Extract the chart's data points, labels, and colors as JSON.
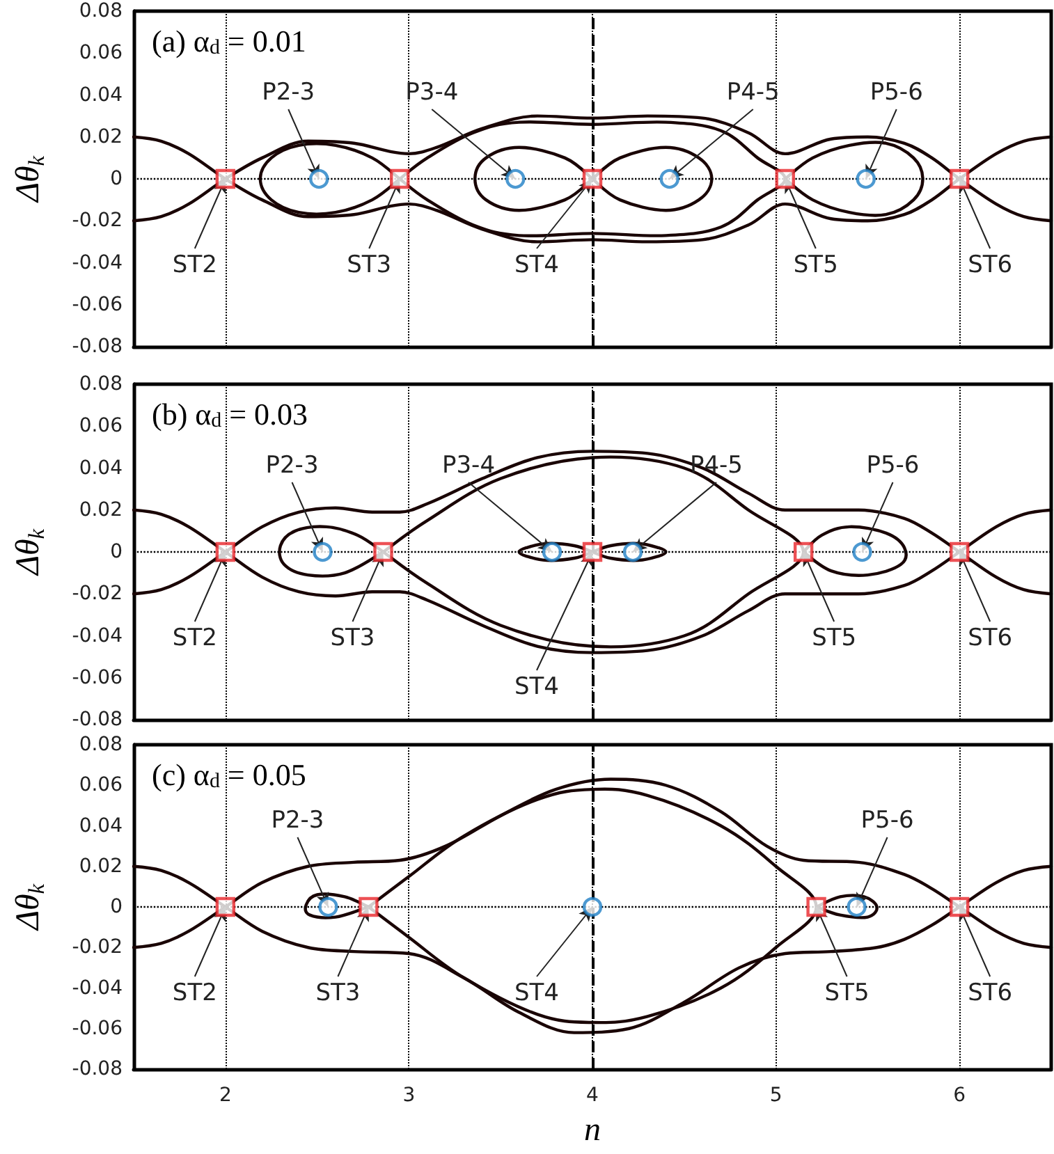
{
  "chart_data": [
    {
      "type": "line",
      "title": "(a) α$_{d}$ = 0.01",
      "ylabel": "Δθ$_{k}$",
      "xlim": [
        1.5,
        6.5
      ],
      "xticks": [
        2,
        3,
        4,
        5,
        6
      ],
      "ylim": [
        -0.08,
        0.08
      ],
      "yticks": [
        -0.08,
        -0.06,
        -0.04,
        -0.02,
        0,
        0.02,
        0.04,
        0.06,
        0.08
      ],
      "grid": "x",
      "tick_labels": "y",
      "ref_lines": [
        {
          "axis": "x",
          "value": 4,
          "line_style": "dashed",
          "color": "#000000"
        },
        {
          "axis": "y",
          "value": 0,
          "line_style": "dotted",
          "color": "#000000"
        }
      ],
      "series": [
        {
          "type": "line",
          "marker": "none",
          "color": "#1a0505",
          "x": [
            1.5,
            1.65,
            1.8,
            2,
            2.2,
            2.45,
            2.7,
            2.9,
            3.0,
            3.15,
            3.4,
            3.7,
            4,
            4.3,
            4.6,
            4.85,
            5.05,
            5.3,
            5.5,
            5.7,
            5.85,
            6,
            6.2,
            6.35,
            6.5
          ],
          "values": [
            -0.02,
            -0.018,
            -0.012,
            0,
            0.01,
            0.018,
            0.017,
            0.013,
            0.012,
            0.015,
            0.024,
            0.03,
            0.029,
            0.03,
            0.029,
            0.022,
            0.012,
            0.019,
            0.02,
            0.017,
            0.01,
            0,
            -0.012,
            -0.018,
            -0.02
          ]
        },
        {
          "type": "line",
          "marker": "none",
          "color": "#1a0505",
          "x": [
            1.5,
            1.65,
            1.8,
            2,
            2.2,
            2.45,
            2.7,
            2.9,
            3.0,
            3.15,
            3.4,
            3.7,
            4,
            4.3,
            4.6,
            4.85,
            5.05,
            5.3,
            5.5,
            5.7,
            5.85,
            6,
            6.2,
            6.35,
            6.5
          ],
          "values": [
            0.02,
            0.018,
            0.012,
            0,
            -0.01,
            -0.018,
            -0.017,
            -0.013,
            -0.012,
            -0.015,
            -0.024,
            -0.03,
            -0.029,
            -0.03,
            -0.029,
            -0.022,
            -0.012,
            -0.019,
            -0.02,
            -0.017,
            -0.01,
            0,
            0.012,
            0.018,
            0.02
          ]
        },
        {
          "type": "scatter",
          "marker": "square",
          "color": "#e8262a",
          "x": [
            2,
            2.95,
            4,
            5.05,
            6
          ],
          "values": [
            0,
            0,
            0,
            0,
            0
          ]
        },
        {
          "type": "scatter",
          "marker": "circle",
          "color": "#1f7fc6",
          "x": [
            2.51,
            3.58,
            4.42,
            5.49
          ],
          "values": [
            0,
            0,
            0,
            0
          ]
        }
      ],
      "annotations": [
        {
          "text": "ST2",
          "x": 2,
          "y": 0
        },
        {
          "text": "ST3",
          "x": 2.95,
          "y": 0
        },
        {
          "text": "ST4",
          "x": 4,
          "y": 0
        },
        {
          "text": "ST5",
          "x": 5.05,
          "y": 0
        },
        {
          "text": "ST6",
          "x": 6,
          "y": 0
        },
        {
          "text": "P2-3",
          "x": 2.51,
          "y": 0
        },
        {
          "text": "P3-4",
          "x": 3.58,
          "y": 0
        },
        {
          "text": "P4-5",
          "x": 4.42,
          "y": 0
        },
        {
          "text": "P5-6",
          "x": 5.49,
          "y": 0
        }
      ]
    },
    {
      "type": "line",
      "title": "(b) α$_{d}$ = 0.03",
      "ylabel": "Δθ$_{k}$",
      "xlim": [
        1.5,
        6.5
      ],
      "xticks": [
        2,
        3,
        4,
        5,
        6
      ],
      "ylim": [
        -0.08,
        0.08
      ],
      "yticks": [
        -0.08,
        -0.06,
        -0.04,
        -0.02,
        0,
        0.02,
        0.04,
        0.06,
        0.08
      ],
      "grid": "x",
      "tick_labels": "y",
      "ref_lines": [
        {
          "axis": "x",
          "value": 4,
          "line_style": "dashed",
          "color": "#000000"
        },
        {
          "axis": "y",
          "value": 0,
          "line_style": "dotted",
          "color": "#000000"
        }
      ],
      "series": [
        {
          "type": "line",
          "marker": "none",
          "color": "#1a0505",
          "x": [
            1.5,
            1.65,
            1.8,
            2,
            2.2,
            2.4,
            2.6,
            2.8,
            2.95,
            3.1,
            3.4,
            3.7,
            4,
            4.3,
            4.6,
            4.85,
            5.05,
            5.25,
            5.45,
            5.7,
            5.85,
            6,
            6.2,
            6.35,
            6.5
          ],
          "values": [
            -0.02,
            -0.018,
            -0.012,
            0,
            0.012,
            0.019,
            0.021,
            0.019,
            0.019,
            0.023,
            0.035,
            0.045,
            0.048,
            0.047,
            0.04,
            0.028,
            0.02,
            0.02,
            0.02,
            0.016,
            0.009,
            0,
            -0.012,
            -0.018,
            -0.02
          ]
        },
        {
          "type": "line",
          "marker": "none",
          "color": "#1a0505",
          "x": [
            1.5,
            1.65,
            1.8,
            2,
            2.2,
            2.4,
            2.6,
            2.8,
            2.95,
            3.1,
            3.4,
            3.7,
            4,
            4.3,
            4.6,
            4.85,
            5.05,
            5.25,
            5.45,
            5.7,
            5.85,
            6,
            6.2,
            6.35,
            6.5
          ],
          "values": [
            0.02,
            0.018,
            0.012,
            0,
            -0.012,
            -0.019,
            -0.021,
            -0.019,
            -0.019,
            -0.023,
            -0.035,
            -0.045,
            -0.048,
            -0.047,
            -0.04,
            -0.028,
            -0.02,
            -0.02,
            -0.02,
            -0.016,
            -0.009,
            0,
            0.012,
            0.018,
            0.02
          ]
        },
        {
          "type": "scatter",
          "marker": "square",
          "color": "#e8262a",
          "x": [
            2,
            2.86,
            4,
            5.15,
            6
          ],
          "values": [
            0,
            0,
            0,
            0,
            0
          ]
        },
        {
          "type": "scatter",
          "marker": "circle",
          "color": "#1f7fc6",
          "x": [
            2.53,
            3.78,
            4.22,
            5.47
          ],
          "values": [
            0,
            0,
            0,
            0
          ]
        }
      ],
      "annotations": [
        {
          "text": "ST2",
          "x": 2,
          "y": 0
        },
        {
          "text": "ST3",
          "x": 2.86,
          "y": 0
        },
        {
          "text": "ST4",
          "x": 4,
          "y": 0
        },
        {
          "text": "ST5",
          "x": 5.15,
          "y": 0
        },
        {
          "text": "ST6",
          "x": 6,
          "y": 0
        },
        {
          "text": "P2-3",
          "x": 2.53,
          "y": 0
        },
        {
          "text": "P3-4",
          "x": 3.78,
          "y": 0
        },
        {
          "text": "P4-5",
          "x": 4.22,
          "y": 0
        },
        {
          "text": "P5-6",
          "x": 5.47,
          "y": 0
        }
      ]
    },
    {
      "type": "line",
      "title": "(c) α$_{d}$ = 0.05",
      "ylabel": "Δθ$_{k}$",
      "xlabel": "n",
      "xlim": [
        1.5,
        6.5
      ],
      "xticks": [
        2,
        3,
        4,
        5,
        6
      ],
      "ylim": [
        -0.08,
        0.08
      ],
      "yticks": [
        -0.08,
        -0.06,
        -0.04,
        -0.02,
        0,
        0.02,
        0.04,
        0.06,
        0.08
      ],
      "grid": "x",
      "ref_lines": [
        {
          "axis": "x",
          "value": 4,
          "line_style": "dashed",
          "color": "#000000"
        },
        {
          "axis": "y",
          "value": 0,
          "line_style": "dotted",
          "color": "#000000"
        }
      ],
      "series": [
        {
          "type": "line",
          "marker": "none",
          "color": "#1a0505",
          "x": [
            1.5,
            1.65,
            1.8,
            2,
            2.2,
            2.45,
            2.7,
            2.95,
            3.2,
            3.5,
            3.8,
            4.1,
            4.4,
            4.7,
            4.95,
            5.15,
            5.45,
            5.7,
            5.85,
            6,
            6.2,
            6.35,
            6.5
          ],
          "values": [
            -0.02,
            -0.018,
            -0.012,
            0,
            0.012,
            0.02,
            0.022,
            0.023,
            0.03,
            0.045,
            0.058,
            0.063,
            0.06,
            0.047,
            0.03,
            0.023,
            0.022,
            0.016,
            0.009,
            0,
            -0.012,
            -0.018,
            -0.02
          ]
        },
        {
          "type": "line",
          "marker": "none",
          "color": "#1a0505",
          "x": [
            1.5,
            1.65,
            1.8,
            2,
            2.2,
            2.45,
            2.7,
            3.0,
            3.3,
            3.6,
            3.9,
            4.2,
            4.5,
            4.8,
            5.05,
            5.3,
            5.55,
            5.7,
            5.85,
            6,
            6.2,
            6.35,
            6.5
          ],
          "values": [
            0.02,
            0.018,
            0.012,
            0,
            -0.012,
            -0.02,
            -0.022,
            -0.023,
            -0.035,
            -0.052,
            -0.062,
            -0.06,
            -0.047,
            -0.03,
            -0.023,
            -0.022,
            -0.02,
            -0.016,
            -0.009,
            0,
            0.012,
            0.018,
            0.02
          ]
        },
        {
          "type": "scatter",
          "marker": "square",
          "color": "#e8262a",
          "x": [
            2,
            2.78,
            5.22,
            6
          ],
          "values": [
            0,
            0,
            0,
            0
          ]
        },
        {
          "type": "scatter",
          "marker": "circle",
          "color": "#1f7fc6",
          "x": [
            2.56,
            4,
            5.44
          ],
          "values": [
            0,
            0,
            0
          ]
        }
      ],
      "annotations": [
        {
          "text": "ST2",
          "x": 2,
          "y": 0
        },
        {
          "text": "ST3",
          "x": 2.78,
          "y": 0
        },
        {
          "text": "ST4",
          "x": 4,
          "y": 0
        },
        {
          "text": "ST5",
          "x": 5.22,
          "y": 0
        },
        {
          "text": "ST6",
          "x": 6,
          "y": 0
        },
        {
          "text": "P2-3",
          "x": 2.56,
          "y": 0
        },
        {
          "text": "P5-6",
          "x": 5.44,
          "y": 0
        }
      ]
    }
  ]
}
